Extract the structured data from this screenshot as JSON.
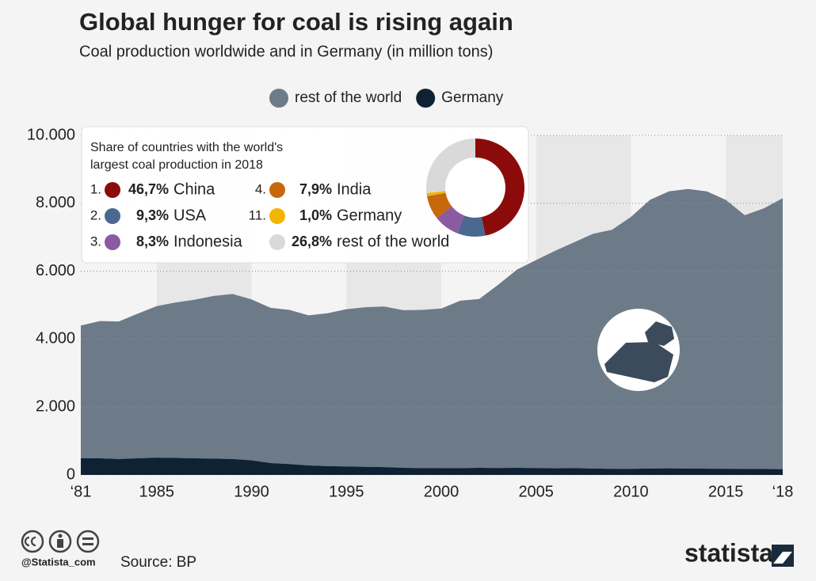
{
  "chart_data": {
    "type": "area",
    "title": "Global hunger for coal is rising again",
    "subtitle": "Coal production worldwide and in Germany (in million tons)",
    "stacked": true,
    "x": [
      1981,
      1982,
      1983,
      1984,
      1985,
      1986,
      1987,
      1988,
      1989,
      1990,
      1991,
      1992,
      1993,
      1994,
      1995,
      1996,
      1997,
      1998,
      1999,
      2000,
      2001,
      2002,
      2003,
      2004,
      2005,
      2006,
      2007,
      2008,
      2009,
      2010,
      2011,
      2012,
      2013,
      2014,
      2015,
      2016,
      2017,
      2018
    ],
    "series": [
      {
        "name": "rest of the world",
        "color": "#6d7b89",
        "values": [
          3910,
          4040,
          4050,
          4260,
          4460,
          4580,
          4670,
          4790,
          4860,
          4740,
          4570,
          4540,
          4420,
          4500,
          4630,
          4700,
          4730,
          4640,
          4660,
          4700,
          4930,
          4970,
          5395,
          5840,
          6125,
          6405,
          6650,
          6910,
          7040,
          7420,
          7910,
          8155,
          8230,
          8165,
          7915,
          7475,
          7675,
          7980
        ]
      },
      {
        "name": "Germany",
        "color": "#0f2233",
        "values": [
          490,
          490,
          470,
          490,
          510,
          500,
          490,
          480,
          470,
          430,
          350,
          320,
          280,
          260,
          250,
          240,
          230,
          210,
          200,
          200,
          200,
          210,
          205,
          210,
          205,
          195,
          200,
          190,
          180,
          180,
          190,
          195,
          190,
          185,
          185,
          175,
          175,
          170
        ]
      }
    ],
    "xlim": [
      1981,
      2018
    ],
    "xticks": [
      {
        "value": 1981,
        "label": "‘81"
      },
      1985,
      1990,
      1995,
      2000,
      2005,
      2010,
      2015,
      {
        "value": 2018,
        "label": "‘18"
      }
    ],
    "ylim": [
      0,
      10000
    ],
    "yticks": [
      0,
      {
        "value": 2000,
        "label": "2.000"
      },
      {
        "value": 4000,
        "label": "4.000"
      },
      {
        "value": 6000,
        "label": "6.000"
      },
      {
        "value": 8000,
        "label": "8.000"
      },
      {
        "value": 10000,
        "label": "10.000"
      }
    ],
    "grid": true,
    "legend": "top",
    "inset": {
      "type": "donut",
      "title_lines": [
        "Share of countries with the world's",
        "largest coal production in 2018"
      ],
      "ranks": [
        "1.",
        "2.",
        "3.",
        "4.",
        "11.",
        null
      ],
      "categories": [
        "China",
        "USA",
        "Indonesia",
        "India",
        "Germany",
        "rest of the world"
      ],
      "values": [
        46.7,
        9.3,
        8.3,
        7.9,
        1.0,
        26.8
      ],
      "value_labels": [
        "46,7%",
        "9,3%",
        "8,3%",
        "7,9%",
        "1,0%",
        "26,8%"
      ],
      "colors": [
        "#8b0b0b",
        "#4a6890",
        "#8a5aa3",
        "#c8680c",
        "#f4b400",
        "#d9d9d9"
      ]
    },
    "source": "Source: BP",
    "credit": "@Statista_com",
    "brand": "statista"
  }
}
